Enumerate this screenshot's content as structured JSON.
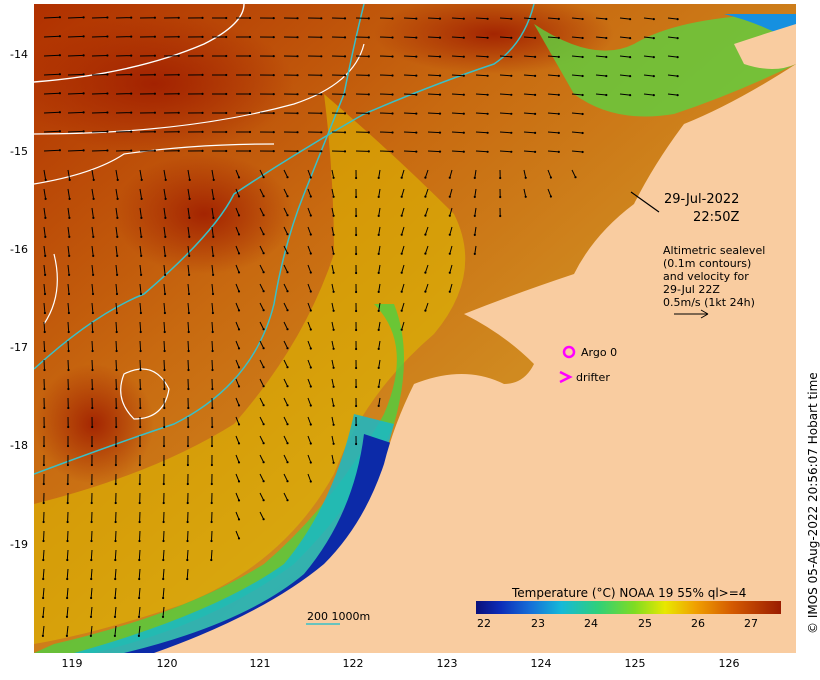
{
  "map": {
    "x_ticks": [
      "119",
      "120",
      "121",
      "122",
      "123",
      "124",
      "125",
      "126"
    ],
    "y_ticks": [
      "-14",
      "-15",
      "-16",
      "-17",
      "-18",
      "-19"
    ],
    "date": "29-Jul-2022",
    "time": "22:50Z",
    "legend_lines": [
      "Altimetric sealevel",
      "(0.1m contours)",
      "and velocity for",
      "29-Jul 22Z",
      "0.5m/s (1kt 24h)"
    ],
    "argo_label": "Argo 0",
    "drifter_label": "drifter",
    "depth_scale": "200  1000m",
    "colorbar_title": "Temperature (°C) NOAA 19 55% ql>=4",
    "colorbar_ticks": [
      "22",
      "23",
      "24",
      "25",
      "26",
      "27"
    ],
    "credit": "© IMOS 05-Aug-2022 20:56:07 Hobart time"
  },
  "colors": {
    "land": "#f9cca0",
    "contour": "#ffffff",
    "isobath": "#39c0c8",
    "argo": "#ff00ff"
  }
}
